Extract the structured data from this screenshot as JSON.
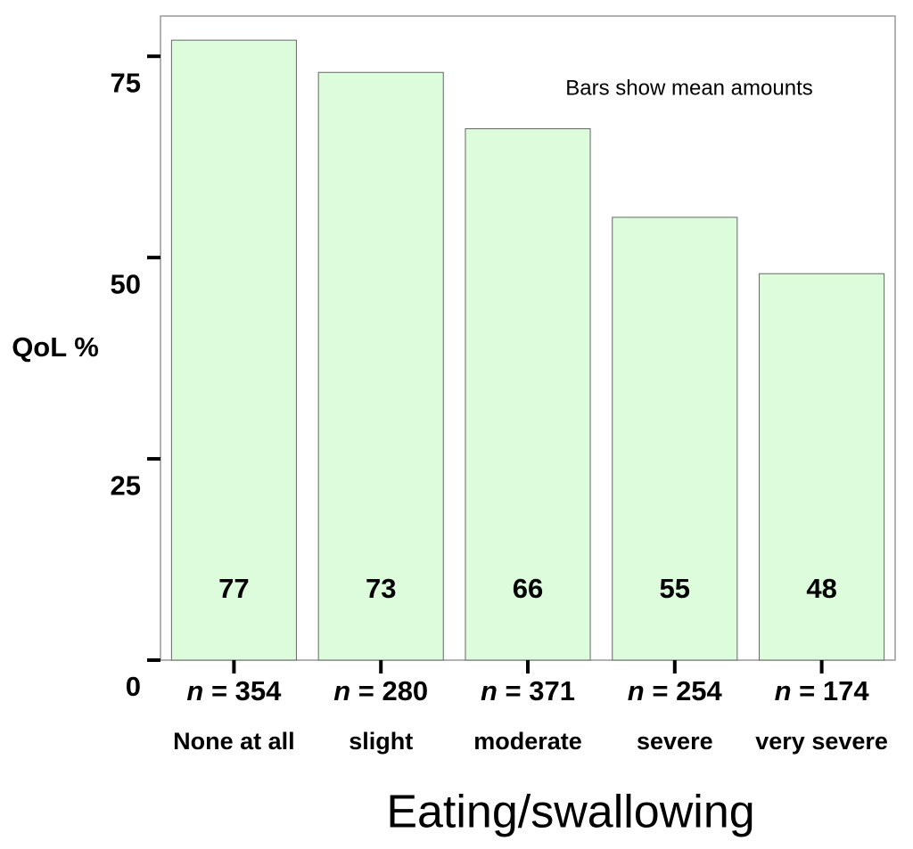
{
  "chart_data": {
    "type": "bar",
    "categories": [
      "None at all",
      "slight",
      "moderate",
      "severe",
      "very severe"
    ],
    "n_labels": [
      "n = 354",
      "n = 280",
      "n = 371",
      "n = 254",
      "n = 174"
    ],
    "values": [
      77,
      73,
      66,
      55,
      48
    ],
    "color": "#dcfcdc",
    "ylim": [
      0,
      80
    ],
    "yticks": [
      0,
      25,
      50,
      75
    ],
    "ylabel": "QoL %",
    "xlabel": "Eating/swallowing",
    "annotation": "Bars show mean amounts"
  }
}
